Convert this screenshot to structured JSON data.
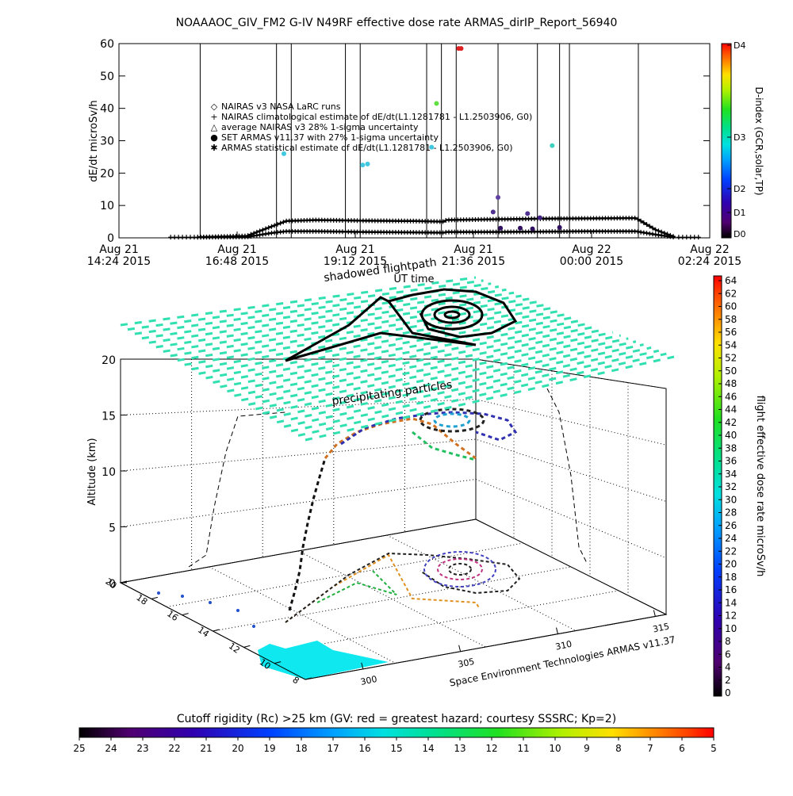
{
  "title": "NOAAAOC_GIV_FM2 G-IV    N49RF   effective dose rate ARMAS_dirIP_Report_56940",
  "chart_data": [
    {
      "type": "line",
      "ylabel": "dE/dt microSv/h",
      "xlabel": "UT time",
      "ylim": [
        0,
        60
      ],
      "yticks": [
        "0",
        "10",
        "20",
        "30",
        "40",
        "50",
        "60"
      ],
      "xticks": [
        {
          "line1": "Aug 21",
          "line2": "14:24 2015"
        },
        {
          "line1": "Aug 21",
          "line2": "16:48 2015"
        },
        {
          "line1": "Aug 21",
          "line2": "19:12 2015"
        },
        {
          "line1": "Aug 21",
          "line2": "21:36 2015"
        },
        {
          "line1": "Aug 22",
          "line2": "00:00 2015"
        },
        {
          "line1": "Aug 22",
          "line2": "02:24 2015"
        }
      ],
      "x_hours": [
        0,
        2.4,
        4.8,
        7.2,
        9.6,
        12.0
      ],
      "xlim_hours": [
        0,
        12.0
      ],
      "legend": [
        {
          "symbol": "◇",
          "label": "NAIRAS v3 NASA LaRC runs"
        },
        {
          "symbol": "+",
          "label": "NAIRAS climatological estimate of dE/dt(L1.1281781 - L1.2503906, G0)"
        },
        {
          "symbol": "△",
          "label": "average NAIRAS v3 28% 1-sigma uncertainty"
        },
        {
          "symbol": "●",
          "label": "SET ARMAS v11.37 with 27% 1-sigma uncertainty"
        },
        {
          "symbol": "✱",
          "label": "ARMAS statistical estimate of dE/dt(L1.1281781 - L1.2503906, G0)"
        }
      ],
      "legend_colors": [
        "#000000",
        "#000000",
        "#000000",
        "#0000ff",
        "#000000"
      ],
      "climatology_series": {
        "x_hours": [
          1.6,
          2.6,
          3.1,
          3.4,
          4.0,
          5.0,
          6.0,
          6.6,
          6.65,
          7.5,
          8.5,
          9.5,
          10.3,
          10.5,
          10.9,
          11.3
        ],
        "upper": [
          0.2,
          0.6,
          3.5,
          5.2,
          5.5,
          5.3,
          5.2,
          5.0,
          5.5,
          5.7,
          5.9,
          6.0,
          6.1,
          6.1,
          2.5,
          0.2
        ],
        "lower": [
          0.2,
          0.3,
          1.5,
          2.0,
          2.0,
          1.8,
          1.7,
          1.6,
          1.8,
          1.8,
          1.9,
          2.0,
          2.0,
          2.0,
          1.0,
          0.2
        ]
      },
      "armas_points": [
        {
          "t": 4.95,
          "v": 22.5,
          "color": "#40c8e0"
        },
        {
          "t": 5.05,
          "v": 22.8,
          "color": "#40c8e0"
        },
        {
          "t": 3.35,
          "v": 26.0,
          "color": "#40c8e0"
        },
        {
          "t": 6.35,
          "v": 28.0,
          "color": "#40c8e0"
        },
        {
          "t": 6.45,
          "v": 41.5,
          "color": "#60e040"
        },
        {
          "t": 6.9,
          "v": 58.5,
          "color": "#e02020"
        },
        {
          "t": 6.95,
          "v": 58.5,
          "color": "#e02020"
        },
        {
          "t": 7.6,
          "v": 8.0,
          "color": "#503090"
        },
        {
          "t": 7.7,
          "v": 12.5,
          "color": "#6040a0"
        },
        {
          "t": 7.75,
          "v": 3.0,
          "color": "#301060"
        },
        {
          "t": 8.15,
          "v": 3.0,
          "color": "#301060"
        },
        {
          "t": 8.3,
          "v": 7.5,
          "color": "#503090"
        },
        {
          "t": 8.4,
          "v": 2.8,
          "color": "#301060"
        },
        {
          "t": 8.55,
          "v": 6.2,
          "color": "#402080"
        },
        {
          "t": 8.8,
          "v": 28.5,
          "color": "#40d0c0"
        },
        {
          "t": 8.95,
          "v": 3.2,
          "color": "#301060"
        }
      ],
      "vertical_markers_hours": [
        1.65,
        3.2,
        3.5,
        4.6,
        4.9,
        6.25,
        6.55,
        6.85,
        7.7,
        8.5,
        8.95,
        9.15,
        10.55
      ]
    },
    {
      "type": "scatter",
      "ylabel": "Altitude (km)",
      "zticks": [
        "0",
        "5",
        "10",
        "15",
        "20"
      ],
      "lat_ticks": [
        "8",
        "10",
        "12",
        "14",
        "16",
        "18",
        "20"
      ],
      "lon_ticks": [
        "300",
        "305",
        "310",
        "315"
      ],
      "labels": {
        "shadow": "shadowed flightpath",
        "precip": "precipitating particles",
        "credit": "Space Environment Technologies ARMAS v11.37"
      },
      "dose_colorbar": {
        "label": "flight effective dose rate microSv/h",
        "ticks": [
          "0",
          "2",
          "4",
          "6",
          "8",
          "10",
          "12",
          "14",
          "16",
          "18",
          "20",
          "22",
          "24",
          "26",
          "28",
          "30",
          "32",
          "34",
          "36",
          "38",
          "40",
          "42",
          "44",
          "46",
          "48",
          "50",
          "52",
          "54",
          "56",
          "58",
          "60",
          "62",
          "64"
        ]
      },
      "cutoff_colorbar": {
        "label": "Cutoff rigidity (Rc) >25 km (GV: red = greatest hazard; courtesy SSSRC; Kp=2)",
        "ticks": [
          "25",
          "24",
          "23",
          "22",
          "21",
          "20",
          "19",
          "18",
          "17",
          "16",
          "15",
          "14",
          "13",
          "12",
          "11",
          "10",
          "9",
          "8",
          "7",
          "6",
          "5"
        ]
      }
    }
  ],
  "d_index_colorbar": {
    "label": "D-index (GCR,solar,TP)",
    "ticks": [
      "D4",
      "D3",
      "D2",
      "D1",
      "D0"
    ]
  },
  "colors": {
    "precip_layer": "#30e0b0",
    "cyan_region": "#10e8f0",
    "rainbow": [
      "#000000",
      "#500070",
      "#3000b0",
      "#0040ff",
      "#00a0ff",
      "#00e0e0",
      "#00e090",
      "#20e020",
      "#b0f000",
      "#ffe000",
      "#ff9000",
      "#ff4000",
      "#ff0000"
    ]
  }
}
